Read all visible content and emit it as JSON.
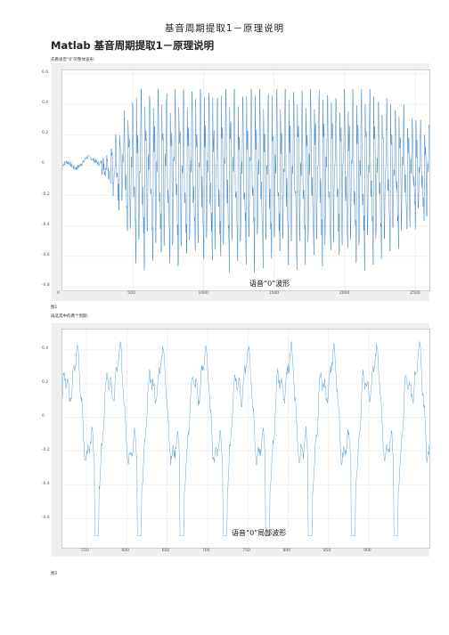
{
  "doc": {
    "title": "基音周期提取1－原理说明",
    "heading": "Matlab 基音周期提取1－原理说明",
    "caption1": "先看语音“0”的整体波形:",
    "fig1_label": "图1",
    "caption2": "再选其中的两个周期:",
    "fig2_label": "图2"
  },
  "chart_data": [
    {
      "type": "line",
      "annotation": "语音“0”波形",
      "x_range": [
        0,
        2600
      ],
      "ylim": [
        -0.8,
        0.6
      ],
      "xticks": [
        "0",
        "500",
        "1000",
        "1500",
        "2000",
        "2500"
      ],
      "yticks": [
        "0.6",
        "0.4",
        "0.2",
        "0",
        "-0.2",
        "-0.4",
        "-0.6",
        "-0.8"
      ],
      "grid": true,
      "color": "#2b7bbf"
    },
    {
      "type": "line",
      "annotation": "语音“0”局部波形",
      "x_range": [
        520,
        975
      ],
      "ylim": [
        -0.75,
        0.5
      ],
      "xticks": [
        "550",
        "600",
        "650",
        "700",
        "750",
        "800",
        "850",
        "900"
      ],
      "yticks": [
        "0.4",
        "0.2",
        "0",
        "-0.2",
        "-0.4",
        "-0.6"
      ],
      "grid": true,
      "color": "#4b97d0"
    }
  ]
}
